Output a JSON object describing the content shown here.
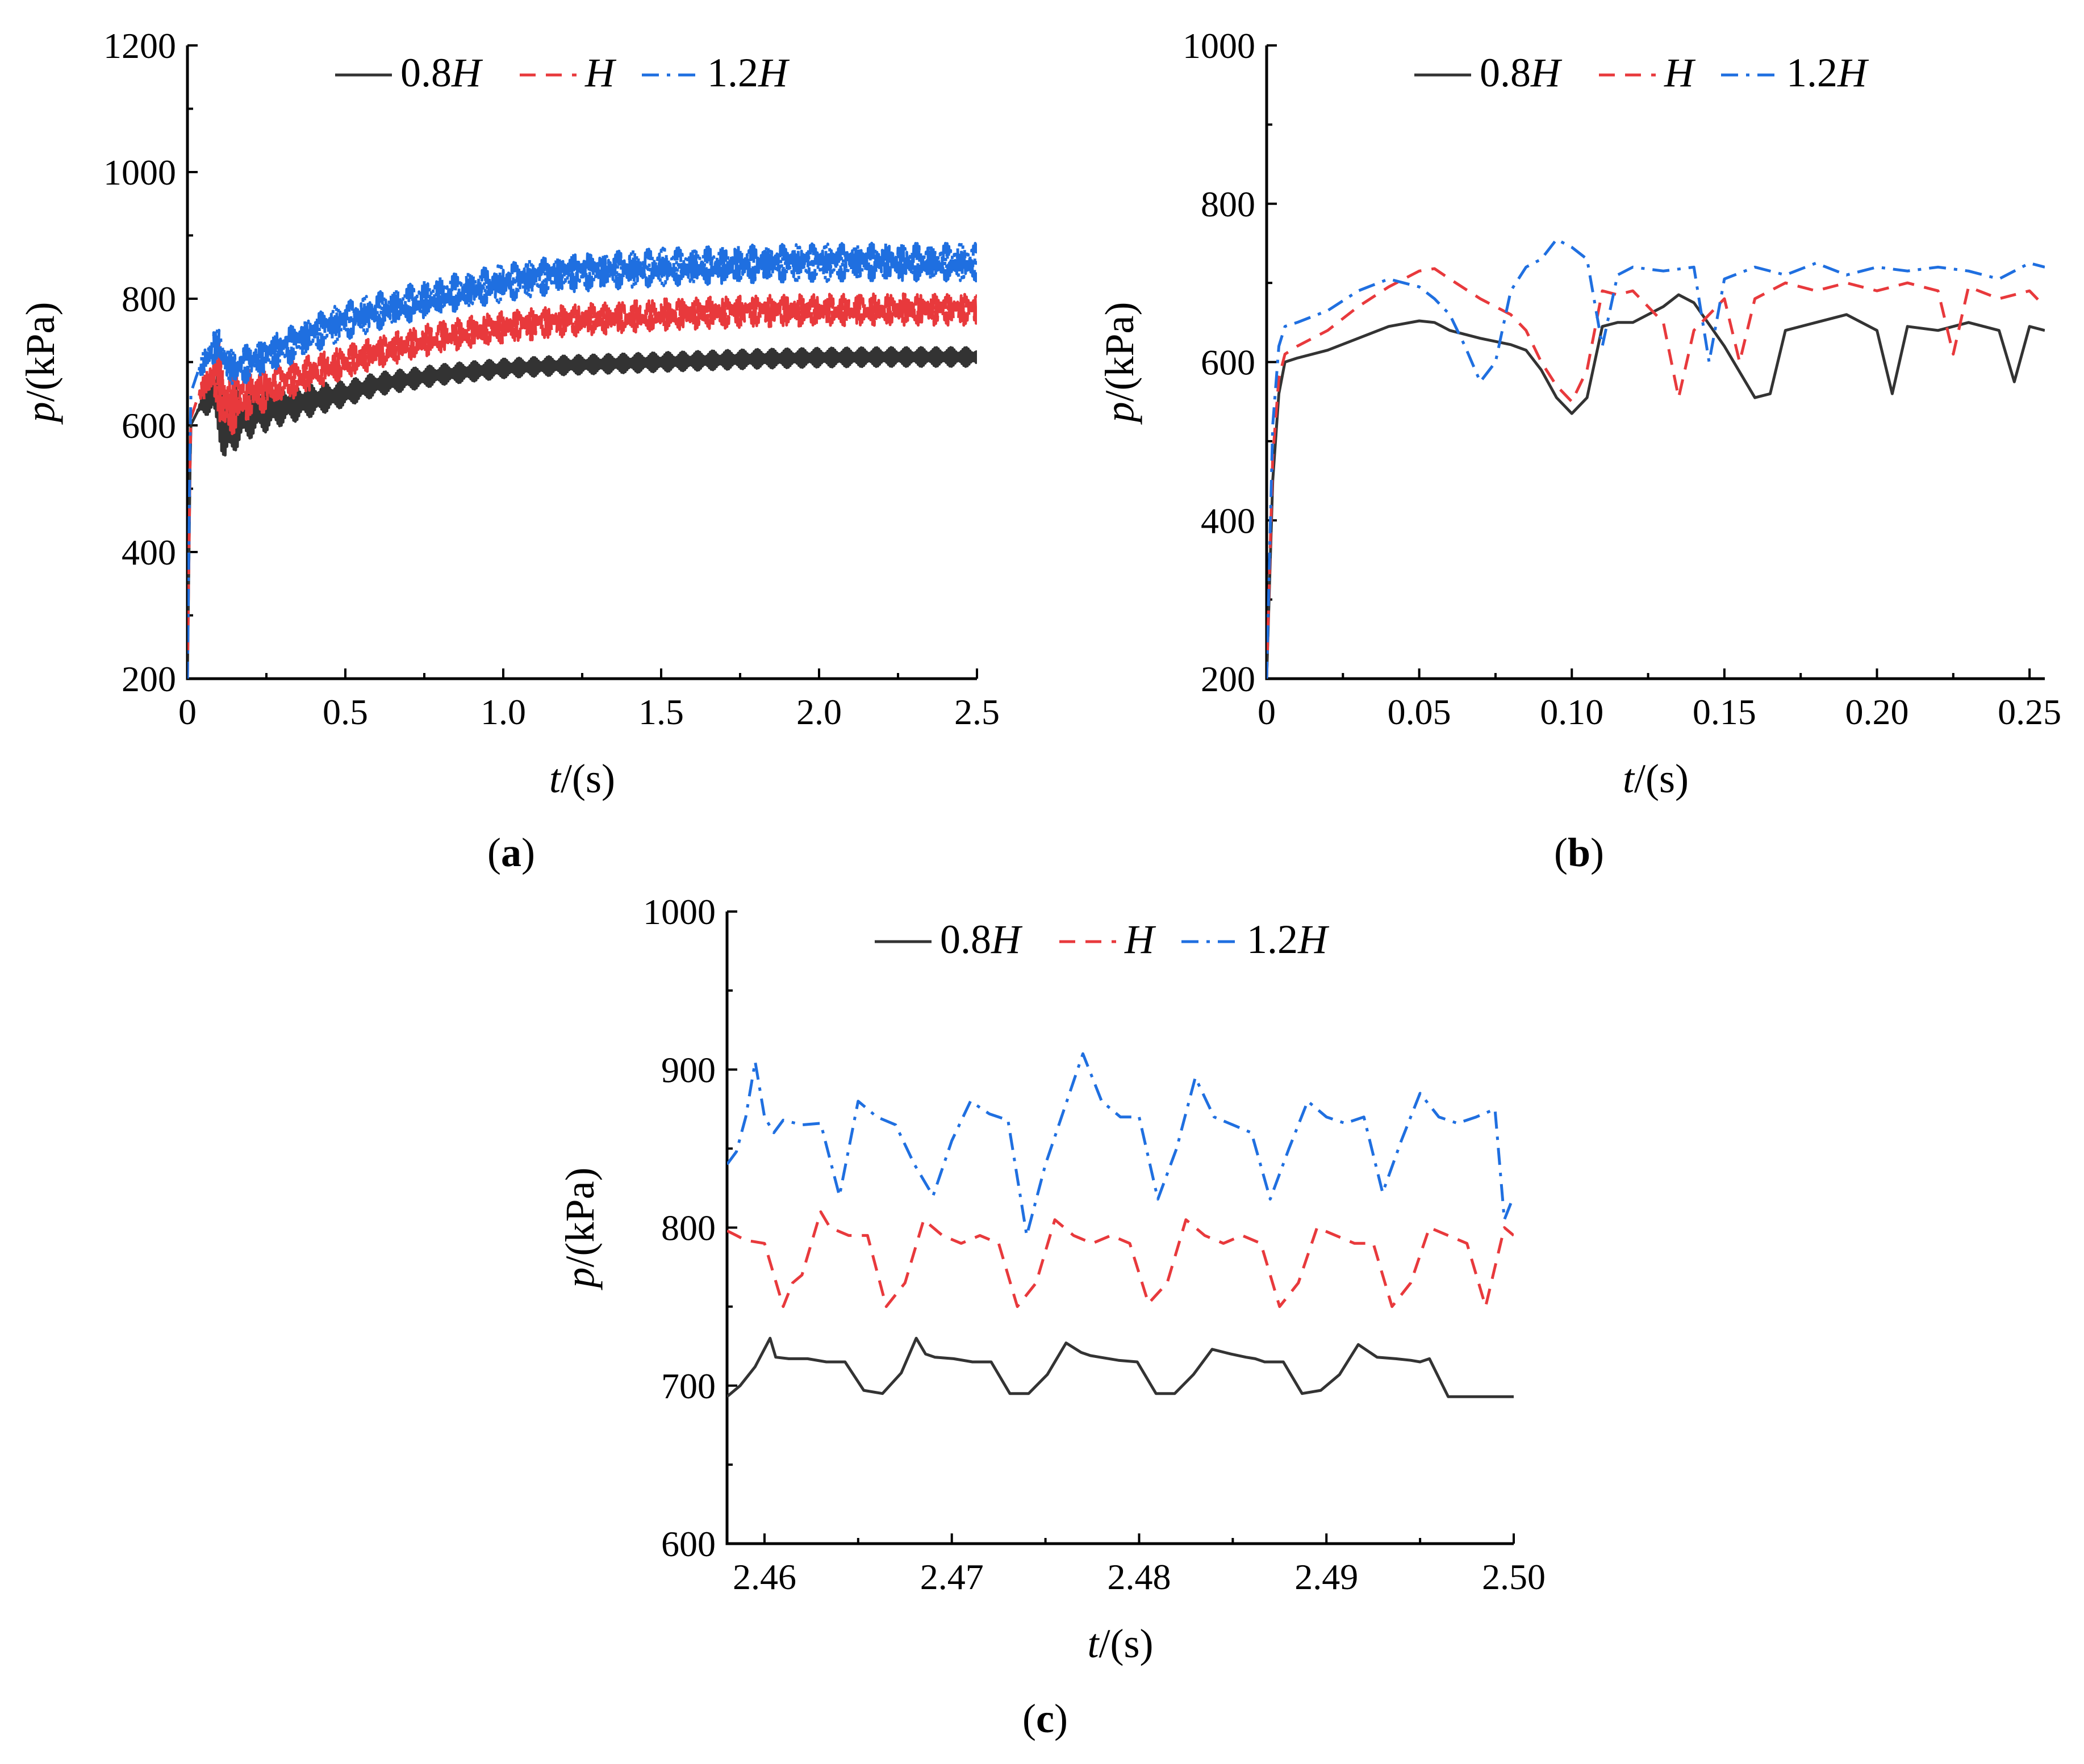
{
  "colors": {
    "s08H": "#333333",
    "sH": "#e8393c",
    "s12H": "#1f6fe0"
  },
  "chart_data": [
    {
      "panel": "a",
      "type": "line",
      "panel_label_open": "(",
      "panel_label_letter": "a",
      "panel_label_close": ")",
      "xlabel_var": "t",
      "xlabel_unit": "/(s)",
      "ylabel_var": "p",
      "ylabel_unit": "/(kPa)",
      "xlim": [
        0,
        2.5
      ],
      "ylim": [
        200,
        1200
      ],
      "xticks": [
        0,
        0.5,
        1.0,
        1.5,
        2.0,
        2.5
      ],
      "xtick_labels": [
        "0",
        "0.5",
        "1.0",
        "1.5",
        "2.0",
        "2.5"
      ],
      "yticks": [
        200,
        400,
        600,
        800,
        1000,
        1200
      ],
      "ytick_labels": [
        "200",
        "400",
        "600",
        "800",
        "1000",
        "1200"
      ],
      "legend": [
        {
          "num": "0.8",
          "var": "H",
          "style": "solid",
          "color_key": "s08H"
        },
        {
          "num": "",
          "var": "H",
          "style": "dashed",
          "color_key": "sH"
        },
        {
          "num": "1.2",
          "var": "H",
          "style": "dashdot",
          "color_key": "s12H"
        }
      ],
      "series": [
        {
          "name": "0.8H",
          "color_key": "s08H",
          "style": "solid",
          "x": [
            0,
            0.01,
            0.03,
            0.05,
            0.08,
            0.1,
            0.12,
            0.15,
            0.2,
            0.3,
            0.4,
            0.5,
            0.6,
            0.8,
            1.0,
            1.2,
            1.5,
            1.8,
            2.0,
            2.2,
            2.5
          ],
          "y": [
            200,
            600,
            620,
            640,
            650,
            640,
            590,
            610,
            620,
            630,
            640,
            650,
            665,
            680,
            690,
            695,
            700,
            705,
            707,
            708,
            708
          ],
          "amp": [
            0,
            0,
            0,
            20,
            40,
            60,
            60,
            50,
            40,
            30,
            25,
            20,
            18,
            16,
            15,
            15,
            15,
            15,
            15,
            15,
            15
          ]
        },
        {
          "name": "H",
          "color_key": "sH",
          "style": "dashed",
          "x": [
            0,
            0.01,
            0.03,
            0.05,
            0.08,
            0.1,
            0.12,
            0.15,
            0.2,
            0.3,
            0.4,
            0.5,
            0.6,
            0.8,
            1.0,
            1.2,
            1.5,
            1.8,
            2.0,
            2.2,
            2.5
          ],
          "y": [
            200,
            610,
            640,
            660,
            680,
            670,
            630,
            640,
            650,
            665,
            685,
            700,
            715,
            740,
            755,
            765,
            775,
            780,
            782,
            783,
            783
          ],
          "amp": [
            0,
            0,
            0,
            20,
            40,
            60,
            60,
            50,
            40,
            30,
            28,
            26,
            25,
            25,
            25,
            25,
            25,
            25,
            25,
            25,
            25
          ]
        },
        {
          "name": "1.2H",
          "color_key": "s12H",
          "style": "dashdot",
          "x": [
            0,
            0.01,
            0.03,
            0.05,
            0.08,
            0.1,
            0.12,
            0.15,
            0.2,
            0.3,
            0.4,
            0.5,
            0.6,
            0.8,
            1.0,
            1.2,
            1.5,
            1.8,
            2.0,
            2.2,
            2.5
          ],
          "y": [
            200,
            650,
            680,
            700,
            720,
            730,
            700,
            690,
            700,
            720,
            745,
            765,
            780,
            805,
            825,
            840,
            850,
            855,
            857,
            858,
            858
          ],
          "amp": [
            0,
            0,
            0,
            20,
            30,
            25,
            30,
            30,
            30,
            30,
            30,
            30,
            30,
            30,
            30,
            30,
            30,
            30,
            30,
            30,
            30
          ]
        }
      ]
    },
    {
      "panel": "b",
      "type": "line",
      "panel_label_open": "(",
      "panel_label_letter": "b",
      "panel_label_close": ")",
      "xlabel_var": "t",
      "xlabel_unit": "/(s)",
      "ylabel_var": "p",
      "ylabel_unit": "/(kPa)",
      "xlim": [
        0,
        0.255
      ],
      "ylim": [
        200,
        1000
      ],
      "xticks": [
        0,
        0.05,
        0.1,
        0.15,
        0.2,
        0.25
      ],
      "xtick_labels": [
        "0",
        "0.05",
        "0.10",
        "0.15",
        "0.20",
        "0.25"
      ],
      "yticks": [
        200,
        400,
        600,
        800,
        1000
      ],
      "ytick_labels": [
        "200",
        "400",
        "600",
        "800",
        "1000"
      ],
      "legend": [
        {
          "num": "0.8",
          "var": "H",
          "style": "solid",
          "color_key": "s08H"
        },
        {
          "num": "",
          "var": "H",
          "style": "dashed",
          "color_key": "sH"
        },
        {
          "num": "1.2",
          "var": "H",
          "style": "dashdot",
          "color_key": "s12H"
        }
      ],
      "series": [
        {
          "name": "0.8H",
          "color_key": "s08H",
          "style": "solid",
          "x": [
            0,
            0.002,
            0.004,
            0.006,
            0.01,
            0.02,
            0.03,
            0.04,
            0.05,
            0.055,
            0.06,
            0.07,
            0.08,
            0.085,
            0.09,
            0.095,
            0.1,
            0.105,
            0.11,
            0.115,
            0.12,
            0.13,
            0.135,
            0.14,
            0.15,
            0.16,
            0.165,
            0.17,
            0.18,
            0.19,
            0.2,
            0.205,
            0.21,
            0.22,
            0.23,
            0.24,
            0.245,
            0.25,
            0.255
          ],
          "y": [
            200,
            450,
            560,
            600,
            605,
            615,
            630,
            645,
            652,
            650,
            640,
            630,
            622,
            615,
            590,
            555,
            535,
            555,
            645,
            650,
            650,
            670,
            685,
            675,
            620,
            555,
            560,
            640,
            650,
            660,
            640,
            560,
            645,
            640,
            650,
            640,
            575,
            645,
            640
          ]
        },
        {
          "name": "H",
          "color_key": "sH",
          "style": "dashed",
          "x": [
            0,
            0.002,
            0.004,
            0.006,
            0.01,
            0.02,
            0.03,
            0.04,
            0.05,
            0.055,
            0.06,
            0.07,
            0.08,
            0.085,
            0.09,
            0.095,
            0.1,
            0.105,
            0.11,
            0.115,
            0.12,
            0.13,
            0.135,
            0.14,
            0.15,
            0.155,
            0.16,
            0.17,
            0.18,
            0.19,
            0.2,
            0.21,
            0.22,
            0.225,
            0.23,
            0.24,
            0.25,
            0.255
          ],
          "y": [
            200,
            480,
            580,
            610,
            620,
            640,
            670,
            695,
            715,
            718,
            705,
            680,
            660,
            640,
            600,
            570,
            550,
            590,
            690,
            685,
            690,
            650,
            555,
            640,
            680,
            600,
            680,
            700,
            690,
            700,
            690,
            700,
            690,
            610,
            695,
            680,
            690,
            670
          ]
        },
        {
          "name": "1.2H",
          "color_key": "s12H",
          "style": "dashdot",
          "x": [
            0,
            0.002,
            0.004,
            0.006,
            0.01,
            0.02,
            0.03,
            0.04,
            0.05,
            0.055,
            0.06,
            0.065,
            0.07,
            0.075,
            0.08,
            0.085,
            0.09,
            0.095,
            0.1,
            0.105,
            0.11,
            0.115,
            0.12,
            0.13,
            0.14,
            0.145,
            0.15,
            0.16,
            0.17,
            0.18,
            0.19,
            0.2,
            0.21,
            0.22,
            0.23,
            0.24,
            0.25,
            0.255
          ],
          "y": [
            200,
            520,
            620,
            645,
            650,
            665,
            690,
            705,
            695,
            680,
            660,
            620,
            575,
            600,
            690,
            720,
            730,
            755,
            745,
            730,
            620,
            710,
            720,
            715,
            720,
            600,
            705,
            720,
            710,
            725,
            710,
            720,
            715,
            720,
            715,
            705,
            725,
            720
          ]
        }
      ]
    },
    {
      "panel": "c",
      "type": "line",
      "panel_label_open": "(",
      "panel_label_letter": "c",
      "panel_label_close": ")",
      "xlabel_var": "t",
      "xlabel_unit": "/(s)",
      "ylabel_var": "p",
      "ylabel_unit": "/(kPa)",
      "xlim": [
        2.458,
        2.5
      ],
      "ylim": [
        600,
        1000
      ],
      "xticks": [
        2.46,
        2.47,
        2.48,
        2.49,
        2.5
      ],
      "xtick_labels": [
        "2.46",
        "2.47",
        "2.48",
        "2.49",
        "2.50"
      ],
      "yticks": [
        600,
        700,
        800,
        900,
        1000
      ],
      "ytick_labels": [
        "600",
        "700",
        "800",
        "900",
        "1000"
      ],
      "legend": [
        {
          "num": "0.8",
          "var": "H",
          "style": "solid",
          "color_key": "s08H"
        },
        {
          "num": "",
          "var": "H",
          "style": "dashed",
          "color_key": "sH"
        },
        {
          "num": "1.2",
          "var": "H",
          "style": "dashdot",
          "color_key": "s12H"
        }
      ],
      "series": [
        {
          "name": "0.8H",
          "color_key": "s08H",
          "style": "solid",
          "x": [
            2.458,
            2.4587,
            2.4595,
            2.4603,
            2.4606,
            2.4613,
            2.4623,
            2.4633,
            2.4643,
            2.4653,
            2.4663,
            2.4673,
            2.4681,
            2.4686,
            2.4691,
            2.4701,
            2.4711,
            2.4721,
            2.4731,
            2.4741,
            2.4751,
            2.4761,
            2.4769,
            2.4774,
            2.4779,
            2.4789,
            2.4799,
            2.4809,
            2.4819,
            2.4829,
            2.4839,
            2.4849,
            2.4857,
            2.4862,
            2.4867,
            2.4877,
            2.4887,
            2.4897,
            2.4907,
            2.4917,
            2.4927,
            2.4937,
            2.4945,
            2.495,
            2.4955,
            2.4965,
            2.4975,
            2.4985,
            2.4995,
            2.5
          ],
          "y": [
            693,
            700,
            712,
            730,
            718,
            717,
            717,
            715,
            715,
            697,
            695,
            708,
            730,
            720,
            718,
            717,
            715,
            715,
            695,
            695,
            707,
            727,
            721,
            719,
            718,
            716,
            715,
            695,
            695,
            707,
            723,
            720,
            718,
            717,
            715,
            715,
            695,
            697,
            707,
            726,
            718,
            717,
            716,
            715,
            717,
            693,
            693,
            693,
            693,
            693
          ]
        },
        {
          "name": "H",
          "color_key": "sH",
          "style": "dashed",
          "x": [
            2.458,
            2.4585,
            2.459,
            2.46,
            2.461,
            2.4615,
            2.462,
            2.463,
            2.4635,
            2.4645,
            2.4655,
            2.4665,
            2.4675,
            2.4685,
            2.4695,
            2.4705,
            2.4715,
            2.4725,
            2.4735,
            2.4745,
            2.4755,
            2.4765,
            2.4775,
            2.4785,
            2.4795,
            2.4805,
            2.4815,
            2.4825,
            2.4835,
            2.4845,
            2.4855,
            2.4865,
            2.4875,
            2.4885,
            2.4895,
            2.4905,
            2.4915,
            2.4925,
            2.4935,
            2.4945,
            2.4955,
            2.4965,
            2.4975,
            2.4985,
            2.4995,
            2.5
          ],
          "y": [
            798,
            795,
            792,
            790,
            750,
            765,
            770,
            810,
            800,
            795,
            795,
            750,
            765,
            805,
            795,
            790,
            795,
            790,
            750,
            765,
            805,
            795,
            790,
            795,
            790,
            752,
            765,
            805,
            795,
            790,
            795,
            790,
            750,
            765,
            800,
            795,
            790,
            790,
            750,
            765,
            800,
            795,
            790,
            750,
            800,
            795
          ]
        },
        {
          "name": "1.2H",
          "color_key": "s12H",
          "style": "dashdot",
          "x": [
            2.458,
            2.4585,
            2.459,
            2.4595,
            2.46,
            2.4605,
            2.461,
            2.462,
            2.463,
            2.464,
            2.465,
            2.466,
            2.467,
            2.468,
            2.469,
            2.47,
            2.471,
            2.472,
            2.473,
            2.474,
            2.475,
            2.476,
            2.477,
            2.478,
            2.479,
            2.48,
            2.481,
            2.482,
            2.483,
            2.484,
            2.485,
            2.486,
            2.487,
            2.488,
            2.489,
            2.49,
            2.491,
            2.492,
            2.493,
            2.494,
            2.495,
            2.496,
            2.497,
            2.498,
            2.499,
            2.4995,
            2.5
          ],
          "y": [
            840,
            848,
            870,
            905,
            870,
            860,
            868,
            865,
            866,
            820,
            880,
            870,
            865,
            840,
            820,
            855,
            880,
            872,
            868,
            795,
            840,
            875,
            910,
            880,
            870,
            870,
            818,
            850,
            895,
            870,
            865,
            860,
            818,
            850,
            880,
            870,
            866,
            870,
            822,
            855,
            885,
            870,
            866,
            870,
            875,
            805,
            820
          ]
        }
      ]
    }
  ]
}
